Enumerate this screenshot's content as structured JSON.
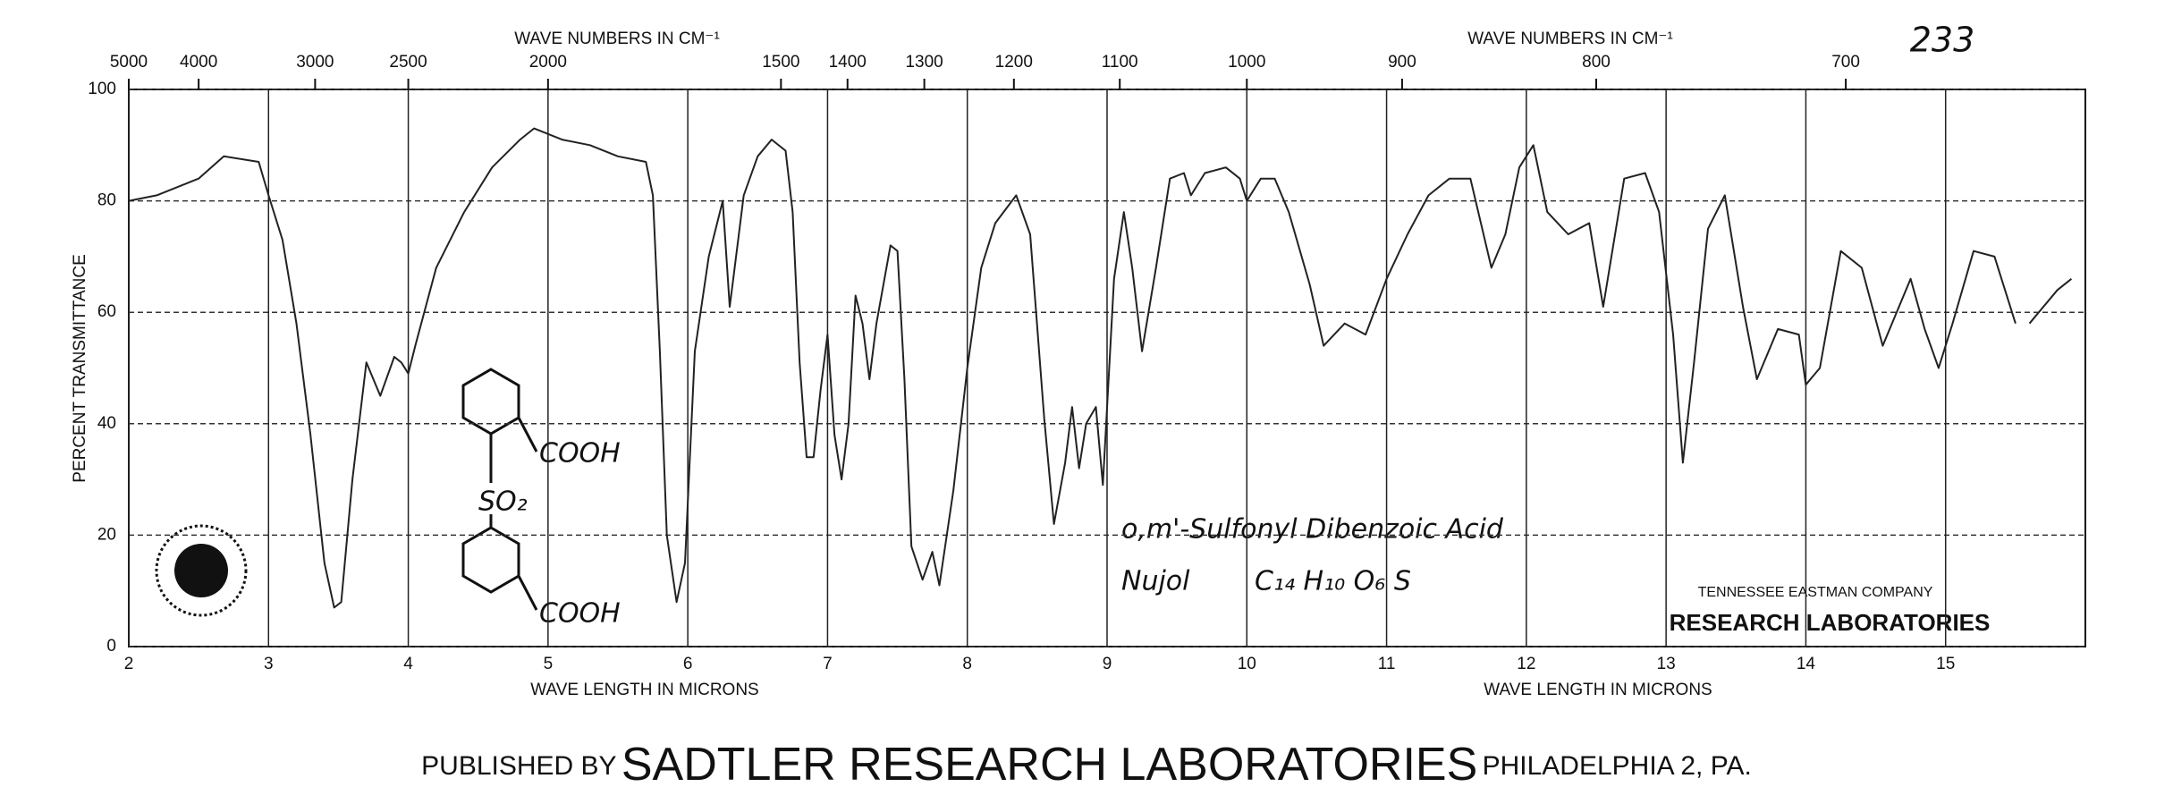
{
  "chart_data": {
    "type": "line",
    "page_number": "233",
    "x_label": "WAVE LENGTH IN MICRONS",
    "x_label_right": "WAVE LENGTH IN MICRONS",
    "x2_label": "WAVE NUMBERS IN CM⁻¹",
    "x2_label_right": "WAVE NUMBERS IN CM⁻¹",
    "y_label": "PERCENT TRANSMITTANCE",
    "compound_name": "o,m'-Sulfonyl Dibenzoic Acid",
    "medium": "Nujol",
    "formula": "C₁₄ H₁₀ O₆ S",
    "structure_labels": [
      "COOH",
      "SO₂",
      "COOH"
    ],
    "lab_name": "TENNESSEE EASTMAN COMPANY",
    "lab_division": "RESEARCH LABORATORIES",
    "publisher_prefix": "PUBLISHED BY",
    "publisher": "SADTLER RESEARCH LABORATORIES",
    "publisher_location": "PHILADELPHIA 2, PA.",
    "color": "#222222",
    "grid": true,
    "xlim": [
      2,
      16
    ],
    "xticks": [
      2,
      3,
      4,
      5,
      6,
      7,
      8,
      9,
      10,
      11,
      12,
      13,
      14,
      15
    ],
    "x2scale": "reciprocal",
    "x2lim": [
      5000,
      625
    ],
    "x2ticks": [
      5000,
      4000,
      3000,
      2500,
      2000,
      1500,
      1400,
      1300,
      1200,
      1100,
      1000,
      900,
      800,
      700
    ],
    "ylim": [
      0,
      100
    ],
    "yticks": [
      0,
      20,
      40,
      60,
      80,
      100
    ],
    "x": [
      2.0,
      2.2,
      2.5,
      2.68,
      2.93,
      3.0,
      3.1,
      3.2,
      3.3,
      3.4,
      3.47,
      3.52,
      3.6,
      3.7,
      3.8,
      3.9,
      3.95,
      4.0,
      4.05,
      4.2,
      4.4,
      4.6,
      4.8,
      4.9,
      5.1,
      5.3,
      5.5,
      5.7,
      5.75,
      5.8,
      5.85,
      5.92,
      5.98,
      6.05,
      6.15,
      6.25,
      6.3,
      6.32,
      6.4,
      6.5,
      6.6,
      6.7,
      6.75,
      6.8,
      6.85,
      6.9,
      6.95,
      7.0,
      7.05,
      7.1,
      7.15,
      7.2,
      7.25,
      7.3,
      7.35,
      7.45,
      7.5,
      7.55,
      7.6,
      7.68,
      7.75,
      7.8,
      7.9,
      8.0,
      8.1,
      8.2,
      8.35,
      8.45,
      8.55,
      8.62,
      8.7,
      8.75,
      8.8,
      8.85,
      8.92,
      8.97,
      9.05,
      9.12,
      9.18,
      9.25,
      9.35,
      9.45,
      9.55,
      9.6,
      9.7,
      9.85,
      9.95,
      10.0,
      10.1,
      10.2,
      10.3,
      10.45,
      10.55,
      10.7,
      10.85,
      11.0,
      11.15,
      11.3,
      11.45,
      11.6,
      11.75,
      11.85,
      11.95,
      12.05,
      12.15,
      12.3,
      12.45,
      12.55,
      12.7,
      12.85,
      12.95,
      13.05,
      13.12,
      13.2,
      13.3,
      13.42,
      13.55,
      13.65,
      13.8,
      13.95,
      14.0,
      14.1,
      14.25,
      14.4,
      14.55,
      14.75,
      14.85,
      14.95,
      15.05,
      15.2,
      15.35,
      15.5,
      null,
      15.6,
      15.8,
      15.9
    ],
    "values": [
      80,
      81,
      84,
      88,
      87,
      81,
      73,
      58,
      38,
      15,
      7,
      8,
      30,
      51,
      45,
      52,
      51,
      49,
      54,
      68,
      78,
      86,
      91,
      93,
      91,
      90,
      88,
      87,
      81,
      53,
      20,
      8,
      15,
      53,
      70,
      80,
      61,
      65,
      81,
      88,
      91,
      89,
      78,
      51,
      34,
      34,
      46,
      56,
      38,
      30,
      40,
      63,
      58,
      48,
      58,
      72,
      71,
      48,
      18,
      12,
      17,
      11,
      28,
      50,
      68,
      76,
      81,
      74,
      41,
      22,
      33,
      43,
      32,
      40,
      43,
      29,
      66,
      78,
      68,
      53,
      68,
      84,
      85,
      81,
      85,
      86,
      84,
      80,
      84,
      84,
      78,
      65,
      54,
      58,
      56,
      66,
      74,
      81,
      84,
      84,
      68,
      74,
      86,
      90,
      78,
      74,
      76,
      61,
      84,
      85,
      78,
      56,
      33,
      51,
      75,
      81,
      61,
      48,
      57,
      56,
      47,
      50,
      71,
      68,
      54,
      66,
      57,
      50,
      58,
      71,
      70,
      58,
      null,
      58,
      64,
      66
    ]
  }
}
